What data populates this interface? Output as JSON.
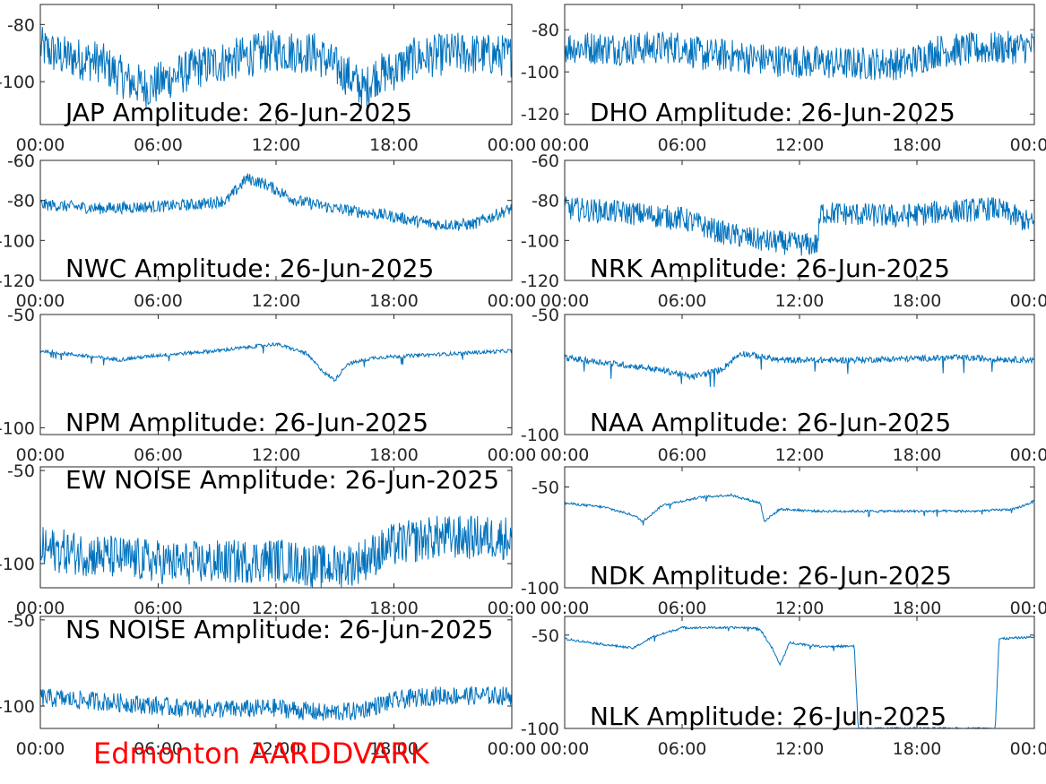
{
  "station_label": "Edmonton AARDDVARK",
  "colors": {
    "trace": "#0072BD",
    "station_label": "#FF0000",
    "axis": "#262626"
  },
  "chart_data": [
    {
      "type": "line",
      "title": "JAP Amplitude: 26-Jun-2025",
      "xticks": [
        "00:00",
        "06:00",
        "12:00",
        "18:00",
        "00:00"
      ],
      "yticks": [
        -80,
        -100
      ],
      "ylim": [
        -115,
        -73
      ],
      "noise": 7.5,
      "baseline": [
        [
          0,
          -88
        ],
        [
          1,
          -91
        ],
        [
          3,
          -93
        ],
        [
          4.5,
          -100
        ],
        [
          5.5,
          -102
        ],
        [
          6.5,
          -99
        ],
        [
          8,
          -95
        ],
        [
          10,
          -92
        ],
        [
          12,
          -89
        ],
        [
          14,
          -90
        ],
        [
          15.5,
          -97
        ],
        [
          16.5,
          -103
        ],
        [
          17,
          -98
        ],
        [
          18,
          -96
        ],
        [
          19,
          -92
        ],
        [
          21,
          -90
        ],
        [
          24,
          -91
        ]
      ]
    },
    {
      "type": "line",
      "title": "DHO Amplitude: 26-Jun-2025",
      "xticks": [
        "00:00",
        "06:00",
        "12:00",
        "18:00",
        "00:00"
      ],
      "yticks": [
        -80,
        -100,
        -120
      ],
      "ylim": [
        -125,
        -68
      ],
      "noise": 8,
      "baseline": [
        [
          0,
          -88
        ],
        [
          3,
          -89
        ],
        [
          6,
          -88
        ],
        [
          7,
          -92
        ],
        [
          8.2,
          -92
        ],
        [
          10,
          -94
        ],
        [
          14,
          -96
        ],
        [
          17.5,
          -96
        ],
        [
          19,
          -90
        ],
        [
          24,
          -88
        ]
      ]
    },
    {
      "type": "line",
      "title": "NWC Amplitude: 26-Jun-2025",
      "xticks": [
        "00:00",
        "06:00",
        "12:00",
        "18:00",
        "00:00"
      ],
      "yticks": [
        -60,
        -80,
        -100,
        -120
      ],
      "ylim": [
        -120,
        -60
      ],
      "noise": 3,
      "baseline": [
        [
          0,
          -82
        ],
        [
          3,
          -84
        ],
        [
          6,
          -83
        ],
        [
          8,
          -82
        ],
        [
          9.5,
          -80
        ],
        [
          10.5,
          -69
        ],
        [
          11.5,
          -72
        ],
        [
          13,
          -80
        ],
        [
          15,
          -84
        ],
        [
          16.5,
          -86
        ],
        [
          18,
          -88
        ],
        [
          20,
          -92
        ],
        [
          22,
          -92
        ],
        [
          24,
          -84
        ]
      ]
    },
    {
      "type": "line",
      "title": "NRK Amplitude: 26-Jun-2025",
      "xticks": [
        "00:00",
        "06:00",
        "12:00",
        "18:00",
        "00:00"
      ],
      "yticks": [
        -60,
        -80,
        -100,
        -120
      ],
      "ylim": [
        -120,
        -60
      ],
      "noise": 6,
      "baseline": [
        [
          0,
          -84
        ],
        [
          3,
          -86
        ],
        [
          6,
          -89
        ],
        [
          8,
          -96
        ],
        [
          10,
          -100
        ],
        [
          12,
          -102
        ],
        [
          12.9,
          -102
        ],
        [
          13.1,
          -86
        ],
        [
          17,
          -88
        ],
        [
          19,
          -86
        ],
        [
          22,
          -84
        ],
        [
          23,
          -88
        ],
        [
          24,
          -92
        ]
      ]
    },
    {
      "type": "line",
      "title": "NPM Amplitude: 26-Jun-2025",
      "xticks": [
        "00:00",
        "06:00",
        "12:00",
        "18:00",
        "00:00"
      ],
      "yticks": [
        -50,
        -100
      ],
      "ylim": [
        -103,
        -50
      ],
      "noise": 0.8,
      "baseline": [
        [
          0,
          -66
        ],
        [
          2,
          -68
        ],
        [
          4,
          -70
        ],
        [
          6,
          -68
        ],
        [
          9,
          -66
        ],
        [
          12,
          -63
        ],
        [
          13.5,
          -67
        ],
        [
          14.5,
          -76
        ],
        [
          15,
          -79
        ],
        [
          15.6,
          -72
        ],
        [
          17,
          -69
        ],
        [
          24,
          -66
        ]
      ]
    },
    {
      "type": "line",
      "title": "NAA Amplitude: 26-Jun-2025",
      "xticks": [
        "00:00",
        "06:00",
        "12:00",
        "18:00",
        "00:00"
      ],
      "yticks": [
        -50,
        -100
      ],
      "ylim": [
        -100,
        -50
      ],
      "noise": 1.3,
      "baseline": [
        [
          0,
          -68
        ],
        [
          2,
          -70
        ],
        [
          4,
          -72
        ],
        [
          5.5,
          -74
        ],
        [
          6.5,
          -76
        ],
        [
          8,
          -73
        ],
        [
          9,
          -66
        ],
        [
          11,
          -69
        ],
        [
          14,
          -69
        ],
        [
          20,
          -68
        ],
        [
          24,
          -69
        ]
      ]
    },
    {
      "type": "line",
      "title": "EW NOISE Amplitude: 26-Jun-2025",
      "xticks": [
        "00:00",
        "06:00",
        "12:00",
        "18:00",
        "00:00"
      ],
      "yticks": [
        -50,
        -100
      ],
      "ylim": [
        -113,
        -48
      ],
      "noise": 12,
      "baseline": [
        [
          0,
          -92
        ],
        [
          4,
          -97
        ],
        [
          7,
          -100
        ],
        [
          10,
          -99
        ],
        [
          12,
          -98
        ],
        [
          14.5,
          -102
        ],
        [
          16,
          -100
        ],
        [
          18,
          -90
        ],
        [
          20,
          -86
        ],
        [
          24,
          -86
        ]
      ]
    },
    {
      "type": "line",
      "title": "NDK Amplitude: 26-Jun-2025",
      "xticks": [
        "00:00",
        "06:00",
        "12:00",
        "18:00",
        "00:00"
      ],
      "yticks": [
        -50,
        -100
      ],
      "ylim": [
        -100,
        -40
      ],
      "noise": 0.6,
      "baseline": [
        [
          0,
          -58
        ],
        [
          2,
          -60
        ],
        [
          3.5,
          -64
        ],
        [
          4,
          -67
        ],
        [
          5,
          -59
        ],
        [
          7,
          -55
        ],
        [
          8.5,
          -54
        ],
        [
          10,
          -58
        ],
        [
          10.2,
          -67
        ],
        [
          11,
          -61
        ],
        [
          13,
          -62
        ],
        [
          17,
          -62
        ],
        [
          21,
          -62
        ],
        [
          23,
          -61
        ],
        [
          24,
          -57
        ]
      ]
    },
    {
      "type": "line",
      "title": "NS NOISE Amplitude: 26-Jun-2025",
      "xticks": [
        "00:00",
        "06:00",
        "12:00",
        "18:00",
        "00:00"
      ],
      "yticks": [
        -50,
        -100
      ],
      "ylim": [
        -113,
        -48
      ],
      "noise": 5.5,
      "baseline": [
        [
          0,
          -95
        ],
        [
          4,
          -98
        ],
        [
          7,
          -101
        ],
        [
          10,
          -102
        ],
        [
          12,
          -101
        ],
        [
          14.5,
          -104
        ],
        [
          16,
          -103
        ],
        [
          18,
          -97
        ],
        [
          20,
          -94
        ],
        [
          24,
          -94
        ]
      ]
    },
    {
      "type": "line",
      "title": "NLK Amplitude: 26-Jun-2025",
      "xticks": [
        "00:00",
        "06:00",
        "12:00",
        "18:00",
        "00:00"
      ],
      "yticks": [
        -50,
        -100
      ],
      "ylim": [
        -100,
        -40
      ],
      "noise": 0.6,
      "baseline": [
        [
          0,
          -52
        ],
        [
          2,
          -55
        ],
        [
          3.5,
          -57
        ],
        [
          4.5,
          -51
        ],
        [
          6,
          -46
        ],
        [
          8,
          -46
        ],
        [
          9.5,
          -46
        ],
        [
          10,
          -47
        ],
        [
          10.6,
          -57
        ],
        [
          11,
          -66
        ],
        [
          11.5,
          -54
        ],
        [
          13,
          -56
        ],
        [
          14.5,
          -56
        ],
        [
          14.8,
          -56
        ],
        [
          15,
          -100
        ],
        [
          19,
          -100
        ],
        [
          22,
          -100
        ],
        [
          22.2,
          -52
        ],
        [
          24,
          -51
        ]
      ]
    }
  ]
}
